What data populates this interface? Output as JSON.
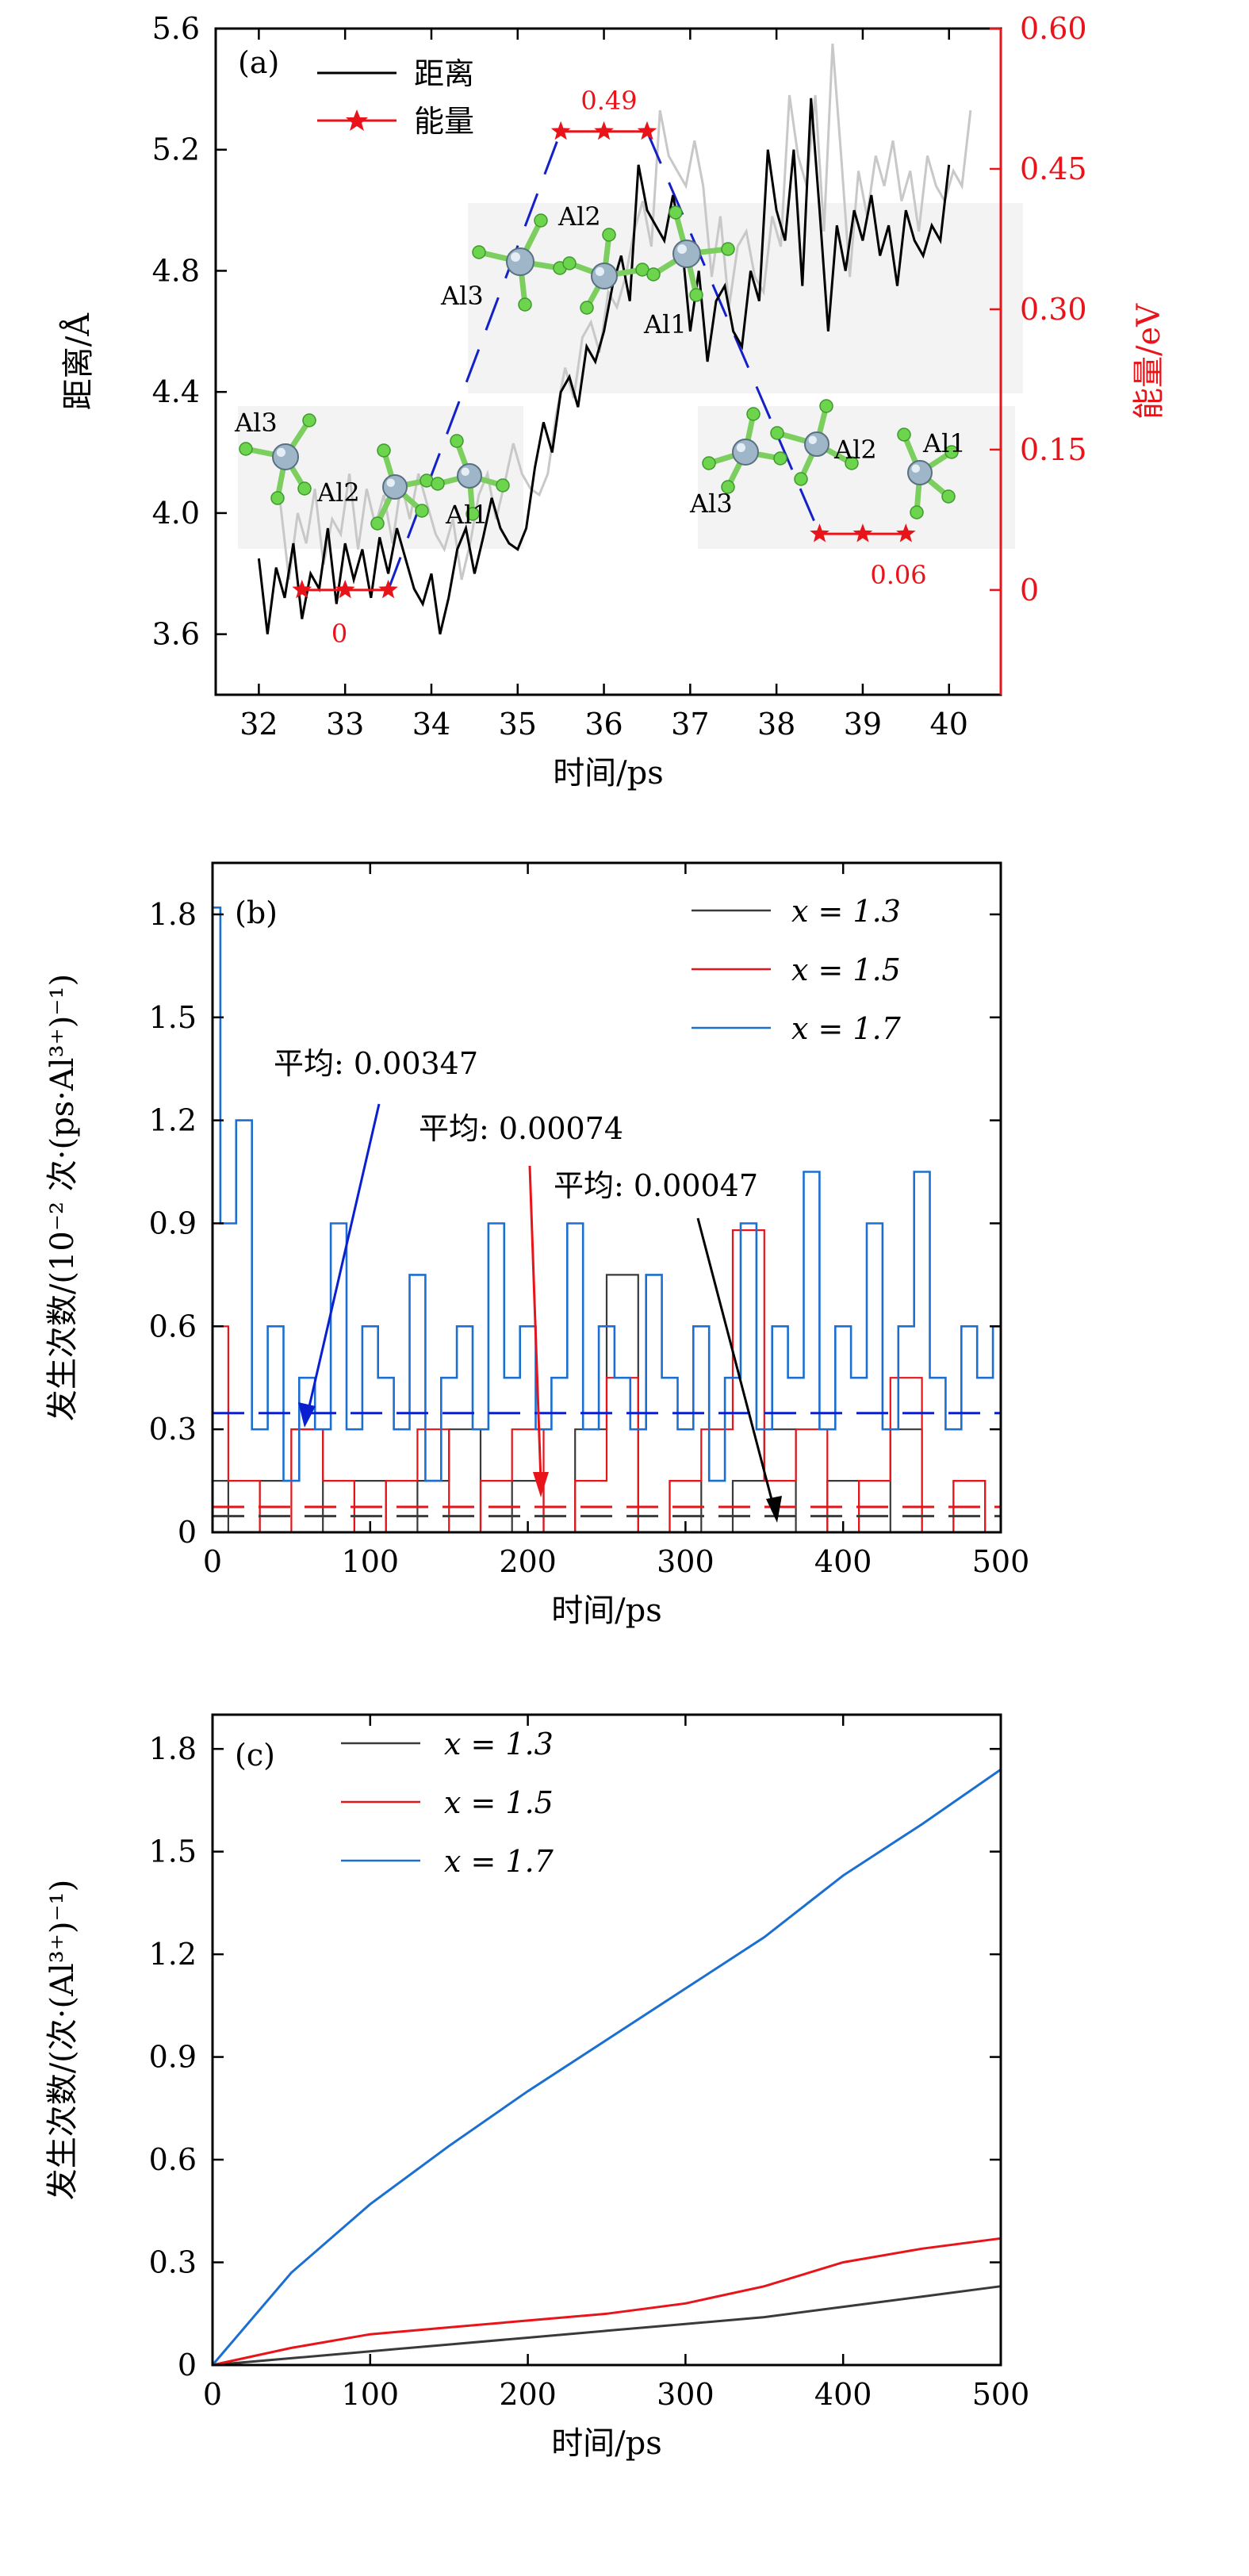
{
  "chart_data": [
    {
      "panel": "(a)",
      "type": "line",
      "xlabel": "时间/ps",
      "ylabel": "距离/Å",
      "y2label": "能量/eV",
      "xlim": [
        31.5,
        40.6
      ],
      "ylim": [
        3.4,
        5.6
      ],
      "y2lim": [
        -0.112,
        0.6
      ],
      "xticks": [
        "32",
        "33",
        "34",
        "35",
        "36",
        "37",
        "38",
        "39",
        "40"
      ],
      "yticks": [
        "3.6",
        "4.0",
        "4.4",
        "4.8",
        "5.2",
        "5.6"
      ],
      "y2ticks": [
        "0",
        "0.15",
        "0.30",
        "0.45",
        "0.60"
      ],
      "legend": [
        "距离",
        "能量"
      ],
      "series": [
        {
          "name": "距离",
          "axis": "left",
          "color": "#000000",
          "x": [
            32.0,
            32.1,
            32.2,
            32.3,
            32.4,
            32.5,
            32.6,
            32.7,
            32.8,
            32.9,
            33.0,
            33.1,
            33.2,
            33.3,
            33.4,
            33.5,
            33.6,
            33.7,
            33.8,
            33.9,
            34.0,
            34.1,
            34.2,
            34.3,
            34.4,
            34.5,
            34.6,
            34.7,
            34.8,
            34.9,
            35.0,
            35.1,
            35.2,
            35.3,
            35.4,
            35.5,
            35.6,
            35.7,
            35.8,
            35.9,
            36.0,
            36.1,
            36.2,
            36.3,
            36.4,
            36.5,
            36.6,
            36.7,
            36.8,
            36.9,
            37.0,
            37.1,
            37.2,
            37.3,
            37.4,
            37.5,
            37.6,
            37.7,
            37.8,
            37.9,
            38.0,
            38.1,
            38.2,
            38.3,
            38.4,
            38.5,
            38.6,
            38.7,
            38.8,
            38.9,
            39.0,
            39.1,
            39.2,
            39.3,
            39.4,
            39.5,
            39.6,
            39.7,
            39.8,
            39.9,
            40.0
          ],
          "y": [
            3.85,
            3.6,
            3.82,
            3.72,
            3.9,
            3.65,
            3.8,
            3.75,
            3.95,
            3.7,
            3.9,
            3.78,
            3.88,
            3.72,
            3.92,
            3.8,
            3.95,
            3.85,
            3.75,
            3.7,
            3.8,
            3.6,
            3.72,
            3.88,
            3.95,
            3.8,
            3.92,
            4.05,
            3.95,
            3.9,
            3.88,
            3.95,
            4.15,
            4.3,
            4.2,
            4.4,
            4.45,
            4.35,
            4.55,
            4.5,
            4.6,
            4.75,
            4.85,
            4.7,
            5.15,
            5.0,
            4.95,
            4.9,
            5.05,
            4.9,
            4.6,
            4.8,
            4.5,
            4.7,
            4.75,
            4.6,
            4.55,
            4.8,
            4.7,
            5.2,
            5.0,
            4.9,
            5.2,
            4.75,
            5.37,
            5.0,
            4.6,
            4.95,
            4.8,
            5.0,
            4.9,
            5.05,
            4.85,
            4.95,
            4.75,
            5.0,
            4.9,
            4.85,
            4.95,
            4.9,
            5.15
          ]
        },
        {
          "name": "能量",
          "axis": "right",
          "color": "#e8141a",
          "x": [
            32.5,
            33.0,
            33.5,
            35.5,
            36.0,
            36.5,
            38.5,
            39.0,
            39.5
          ],
          "y": [
            0,
            0,
            0,
            0.49,
            0.49,
            0.49,
            0.06,
            0.06,
            0.06
          ]
        }
      ],
      "annotations": [
        "0",
        "0.49",
        "0.06",
        "Al1",
        "Al2",
        "Al3"
      ]
    },
    {
      "panel": "(b)",
      "type": "line",
      "xlabel": "时间/ps",
      "ylabel": "发生次数/(10⁻² 次·(ps·Al³⁺)⁻¹)",
      "xlim": [
        0,
        500
      ],
      "ylim": [
        0,
        1.95
      ],
      "xticks": [
        "0",
        "100",
        "200",
        "300",
        "400",
        "500"
      ],
      "yticks": [
        "0",
        "0.3",
        "0.6",
        "0.9",
        "1.2",
        "1.5",
        "1.8"
      ],
      "legend": [
        "x = 1.3",
        "x = 1.5",
        "x = 1.7"
      ],
      "series": [
        {
          "name": "x = 1.3",
          "color": "#3a3a3a",
          "mean": 0.00047,
          "x": [
            0,
            20,
            40,
            60,
            80,
            100,
            120,
            140,
            160,
            180,
            200,
            220,
            240,
            260,
            280,
            300,
            320,
            340,
            360,
            380,
            400,
            420,
            440,
            460,
            480,
            500
          ],
          "y": [
            0.15,
            0.0,
            0.15,
            0.3,
            0.0,
            0.15,
            0.0,
            0.15,
            0.3,
            0.0,
            0.15,
            0.0,
            0.3,
            0.75,
            0.0,
            0.15,
            0.0,
            0.15,
            0.3,
            0.0,
            0.15,
            0.0,
            0.3,
            0.0,
            0.15,
            0.0
          ]
        },
        {
          "name": "x = 1.5",
          "color": "#e8141a",
          "mean": 0.00074,
          "x": [
            0,
            20,
            40,
            60,
            80,
            100,
            120,
            140,
            160,
            180,
            200,
            220,
            240,
            260,
            280,
            300,
            320,
            340,
            360,
            380,
            400,
            420,
            440,
            460,
            480,
            500
          ],
          "y": [
            0.6,
            0.15,
            0.0,
            0.3,
            0.15,
            0.0,
            0.15,
            0.3,
            0.0,
            0.15,
            0.3,
            0.0,
            0.15,
            0.45,
            0.0,
            0.15,
            0.3,
            0.88,
            0.15,
            0.3,
            0.0,
            0.15,
            0.45,
            0.0,
            0.15,
            0.0
          ]
        },
        {
          "name": "x = 1.7",
          "color": "#1b6fd1",
          "mean": 0.00347,
          "x": [
            0,
            10,
            20,
            30,
            40,
            50,
            60,
            70,
            80,
            90,
            100,
            110,
            120,
            130,
            140,
            150,
            160,
            170,
            180,
            190,
            200,
            210,
            220,
            230,
            240,
            250,
            260,
            270,
            280,
            290,
            300,
            310,
            320,
            330,
            340,
            350,
            360,
            370,
            380,
            390,
            400,
            410,
            420,
            430,
            440,
            450,
            460,
            470,
            480,
            490,
            500
          ],
          "y": [
            1.82,
            0.9,
            1.2,
            0.3,
            0.6,
            0.15,
            0.45,
            0.3,
            0.9,
            0.3,
            0.6,
            0.45,
            0.3,
            0.75,
            0.15,
            0.45,
            0.6,
            0.3,
            0.9,
            0.45,
            0.6,
            0.3,
            0.45,
            0.9,
            0.3,
            0.6,
            0.45,
            0.3,
            0.75,
            0.45,
            0.3,
            0.6,
            0.15,
            0.45,
            0.9,
            0.3,
            0.6,
            0.45,
            1.05,
            0.3,
            0.6,
            0.45,
            0.9,
            0.3,
            0.6,
            1.05,
            0.45,
            0.3,
            0.6,
            0.45,
            0.6
          ]
        }
      ],
      "annotations": [
        "平均: 0.00347",
        "平均: 0.00074",
        "平均: 0.00047"
      ]
    },
    {
      "panel": "(c)",
      "type": "line",
      "xlabel": "时间/ps",
      "ylabel": "发生次数/(次·(Al³⁺)⁻¹)",
      "xlim": [
        0,
        500
      ],
      "ylim": [
        0,
        1.9
      ],
      "xticks": [
        "0",
        "100",
        "200",
        "300",
        "400",
        "500"
      ],
      "yticks": [
        "0",
        "0.3",
        "0.6",
        "0.9",
        "1.2",
        "1.5",
        "1.8"
      ],
      "legend": [
        "x = 1.3",
        "x = 1.5",
        "x = 1.7"
      ],
      "series": [
        {
          "name": "x = 1.3",
          "color": "#3a3a3a",
          "x": [
            0,
            50,
            100,
            150,
            200,
            250,
            300,
            350,
            400,
            450,
            500
          ],
          "y": [
            0,
            0.02,
            0.04,
            0.06,
            0.08,
            0.1,
            0.12,
            0.14,
            0.17,
            0.2,
            0.23
          ]
        },
        {
          "name": "x = 1.5",
          "color": "#e8141a",
          "x": [
            0,
            50,
            100,
            150,
            200,
            250,
            300,
            350,
            400,
            450,
            500
          ],
          "y": [
            0,
            0.05,
            0.09,
            0.11,
            0.13,
            0.15,
            0.18,
            0.23,
            0.3,
            0.34,
            0.37
          ]
        },
        {
          "name": "x = 1.7",
          "color": "#1b6fd1",
          "x": [
            0,
            50,
            100,
            150,
            200,
            250,
            300,
            350,
            400,
            450,
            500
          ],
          "y": [
            0,
            0.27,
            0.47,
            0.64,
            0.8,
            0.95,
            1.1,
            1.25,
            1.43,
            1.58,
            1.74
          ]
        }
      ]
    }
  ]
}
